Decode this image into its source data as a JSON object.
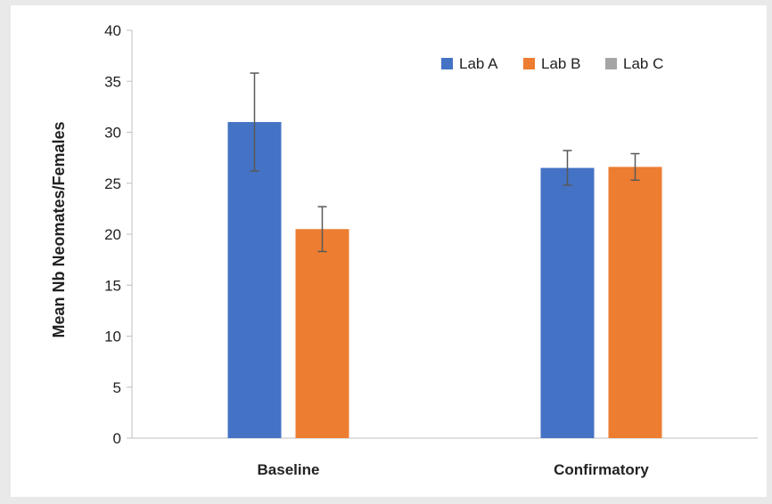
{
  "chart_data": {
    "type": "bar",
    "title": "",
    "xlabel": "",
    "ylabel": "Mean Nb Neomates/Females",
    "categories": [
      "Baseline",
      "Confirmatory"
    ],
    "ylim": [
      0,
      40
    ],
    "yticks": [
      0,
      5,
      10,
      15,
      20,
      25,
      30,
      35,
      40
    ],
    "grid": false,
    "legend_position": "top-right",
    "series": [
      {
        "name": "Lab A",
        "color": "#4472c4",
        "values": [
          31.0,
          26.5
        ],
        "error": [
          4.8,
          1.7
        ]
      },
      {
        "name": "Lab B",
        "color": "#ed7d31",
        "values": [
          20.5,
          26.6
        ],
        "error": [
          2.2,
          1.3
        ]
      },
      {
        "name": "Lab C",
        "color": "#a5a5a5",
        "values": [
          null,
          null
        ],
        "error": [
          null,
          null
        ]
      }
    ]
  }
}
